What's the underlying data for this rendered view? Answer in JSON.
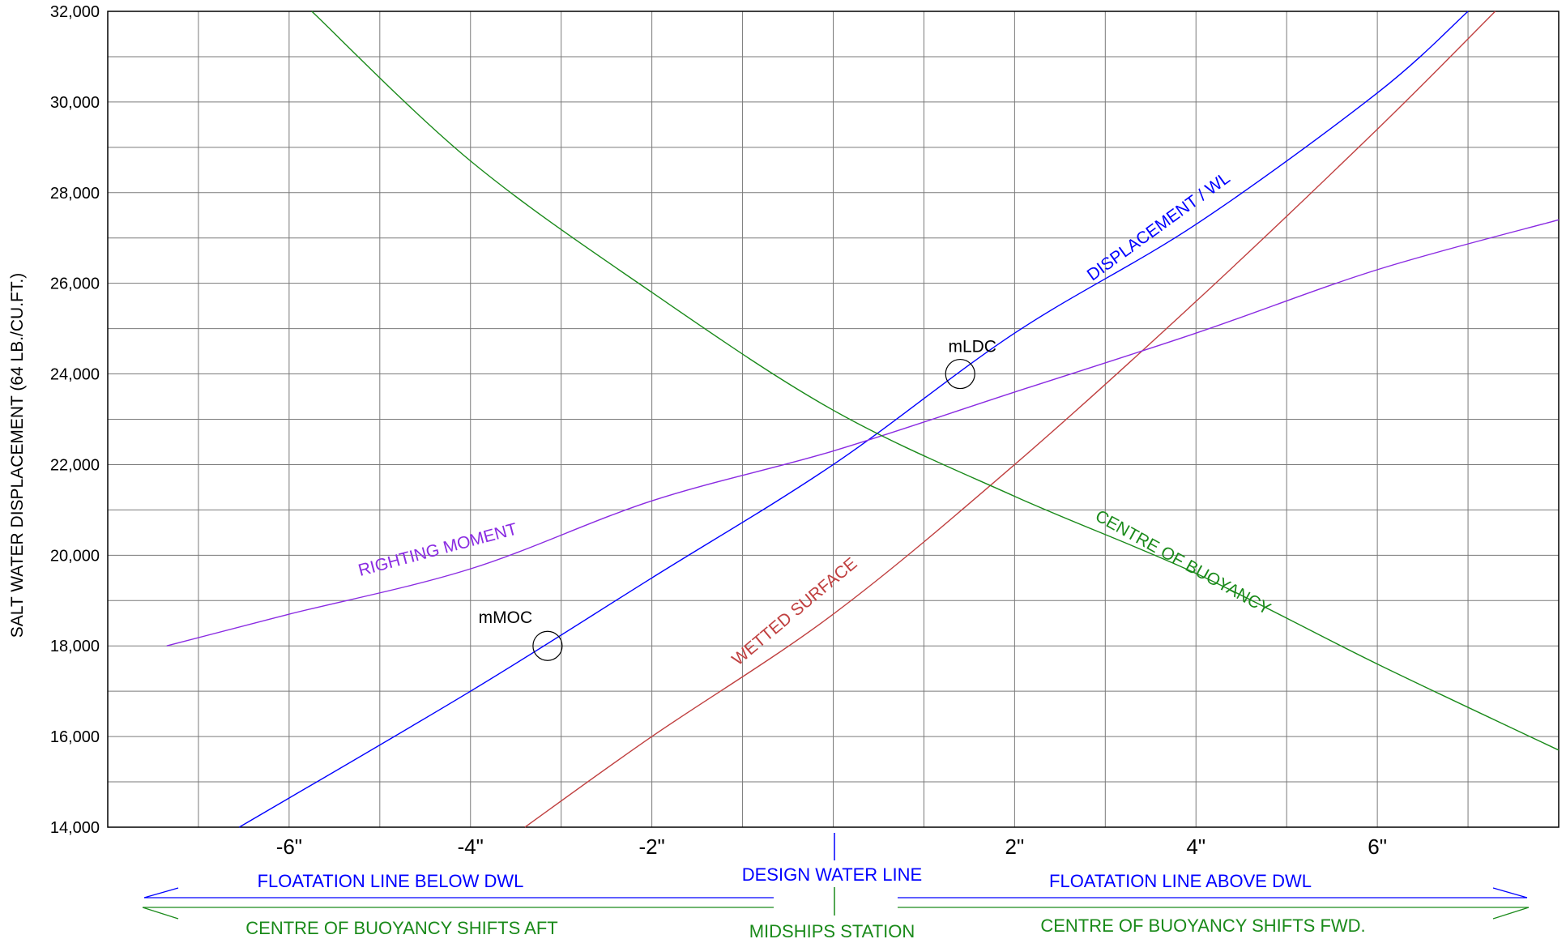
{
  "chart_data": {
    "type": "line",
    "ylabel": "SALT WATER DISPLACEMENT (64 LB./CU.FT.)",
    "ylim": [
      14000,
      32000
    ],
    "xlim": [
      -8,
      8
    ],
    "x_tick_labels": [
      "-6\"",
      "-4\"",
      "-2\"",
      "2\"",
      "4\"",
      "6\""
    ],
    "x_tick_values": [
      -6,
      -4,
      -2,
      2,
      4,
      6
    ],
    "y_tick_labels": [
      "14,000",
      "16,000",
      "18,000",
      "20,000",
      "22,000",
      "24,000",
      "26,000",
      "28,000",
      "30,000",
      "32,000"
    ],
    "y_tick_values": [
      14000,
      16000,
      18000,
      20000,
      22000,
      24000,
      26000,
      28000,
      30000,
      32000
    ],
    "grid": true,
    "series": [
      {
        "name": "DISPLACEMENT / WL",
        "color": "#0000ff",
        "x": [
          -6.55,
          -4,
          -2,
          0,
          2,
          4,
          6,
          7
        ],
        "y": [
          14000,
          17000,
          19500,
          22000,
          24900,
          27300,
          30200,
          32000
        ]
      },
      {
        "name": "WETTED SURFACE",
        "color": "#c04040",
        "x": [
          -3.4,
          -2,
          0,
          2,
          4,
          6,
          7.3
        ],
        "y": [
          14000,
          16000,
          18700,
          22000,
          25600,
          29400,
          32000
        ]
      },
      {
        "name": "RIGHTING MOMENT",
        "color": "#8a2be2",
        "x": [
          -7.35,
          -6,
          -4,
          -2,
          0,
          2,
          4,
          6,
          8
        ],
        "y": [
          18000,
          18700,
          19700,
          21200,
          22300,
          23600,
          24900,
          26300,
          27400
        ]
      },
      {
        "name": "CENTRE OF BUOYANCY",
        "color": "#1a8a1a",
        "x": [
          -5.75,
          -4,
          -2,
          0,
          2,
          4,
          6,
          8
        ],
        "y": [
          32000,
          28700,
          25800,
          23200,
          21300,
          19600,
          17600,
          15700
        ]
      }
    ],
    "markers": [
      {
        "label": "mMOC",
        "x": -3.15,
        "y": 18000
      },
      {
        "label": "mLDC",
        "x": 1.4,
        "y": 24000
      }
    ]
  },
  "bottom_legend": {
    "dwl_left": "FLOATATION LINE BELOW DWL",
    "dwl_center": "DESIGN WATER LINE",
    "dwl_right": "FLOATATION LINE ABOVE DWL",
    "cob_left": "CENTRE OF BUOYANCY SHIFTS AFT",
    "cob_center": "MIDSHIPS STATION",
    "cob_right": "CENTRE OF BUOYANCY SHIFTS FWD."
  },
  "colors": {
    "grid": "#7a7a7a",
    "axis_text": "#000000",
    "dwl_blue": "#0000ff",
    "cob_green": "#1a8a1a"
  }
}
